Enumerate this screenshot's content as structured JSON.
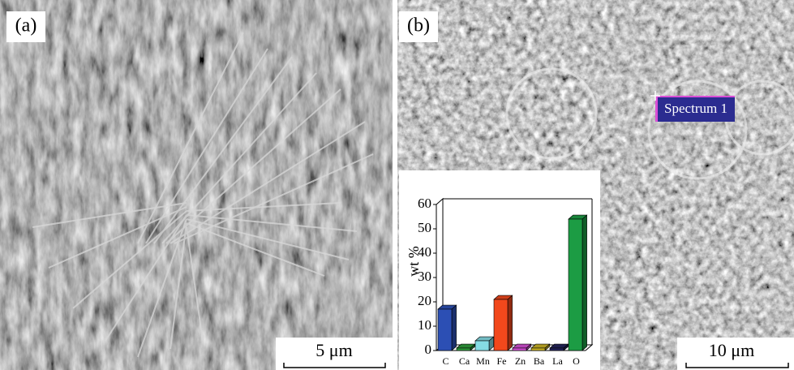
{
  "panels": [
    {
      "label": "(a)",
      "scale_bar": "5 μm"
    },
    {
      "label": "(b)",
      "scale_bar": "10 μm",
      "marker": "Spectrum 1"
    }
  ],
  "chart_data": {
    "type": "bar3d",
    "ylabel": "wt %",
    "categories": [
      "C",
      "Ca",
      "Mn",
      "Fe",
      "Zn",
      "Ba",
      "La",
      "O"
    ],
    "values": [
      17,
      1,
      4,
      21,
      1,
      1,
      1,
      54
    ],
    "colors": [
      "#2c4fb4",
      "#2f9c3c",
      "#86dce4",
      "#f2481c",
      "#d24ed4",
      "#c9b225",
      "#23235a",
      "#1c9c44"
    ],
    "ylim": [
      0,
      60
    ],
    "yticks": [
      0,
      10,
      20,
      30,
      40,
      50,
      60
    ]
  }
}
